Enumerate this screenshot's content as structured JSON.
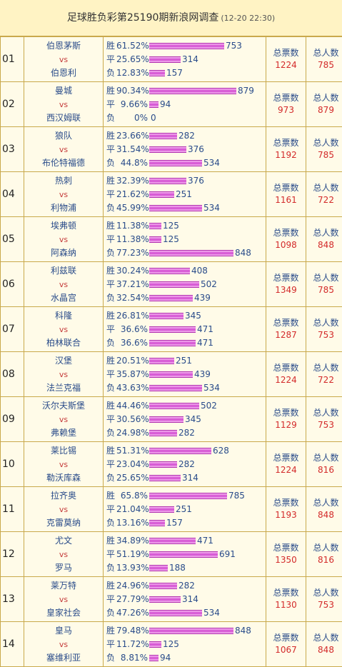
{
  "title": "足球胜负彩第25190期新浪网调查",
  "timestamp": "(12-20 22:30)",
  "labels": {
    "win": "胜",
    "draw": "平",
    "lose": "负",
    "vs": "vs",
    "total_votes": "总票数",
    "total_people": "总人数"
  },
  "colors": {
    "bar": "#D24BD0",
    "team_text": "#2A4C8A",
    "vs_text": "#C43A3A",
    "count_text": "#D32A2A",
    "header_bg": "#FFF3C4"
  },
  "matches": [
    {
      "idx": "01",
      "home": "伯恩茅斯",
      "away": "伯恩利",
      "win_pct": "61.52%",
      "win_cnt": "753",
      "draw_pct": "25.65%",
      "draw_cnt": "314",
      "lose_pct": "12.83%",
      "lose_cnt": "157",
      "total_votes": "1224",
      "total_people": "785"
    },
    {
      "idx": "02",
      "home": "曼城",
      "away": "西汉姆联",
      "win_pct": "90.34%",
      "win_cnt": "879",
      "draw_pct": "9.66%",
      "draw_cnt": "94",
      "lose_pct": "0%",
      "lose_cnt": "0",
      "total_votes": "973",
      "total_people": "879"
    },
    {
      "idx": "03",
      "home": "狼队",
      "away": "布伦特福德",
      "win_pct": "23.66%",
      "win_cnt": "282",
      "draw_pct": "31.54%",
      "draw_cnt": "376",
      "lose_pct": "44.8%",
      "lose_cnt": "534",
      "total_votes": "1192",
      "total_people": "785"
    },
    {
      "idx": "04",
      "home": "热刺",
      "away": "利物浦",
      "win_pct": "32.39%",
      "win_cnt": "376",
      "draw_pct": "21.62%",
      "draw_cnt": "251",
      "lose_pct": "45.99%",
      "lose_cnt": "534",
      "total_votes": "1161",
      "total_people": "722"
    },
    {
      "idx": "05",
      "home": "埃弗顿",
      "away": "阿森纳",
      "win_pct": "11.38%",
      "win_cnt": "125",
      "draw_pct": "11.38%",
      "draw_cnt": "125",
      "lose_pct": "77.23%",
      "lose_cnt": "848",
      "total_votes": "1098",
      "total_people": "848"
    },
    {
      "idx": "06",
      "home": "利兹联",
      "away": "水晶宫",
      "win_pct": "30.24%",
      "win_cnt": "408",
      "draw_pct": "37.21%",
      "draw_cnt": "502",
      "lose_pct": "32.54%",
      "lose_cnt": "439",
      "total_votes": "1349",
      "total_people": "785"
    },
    {
      "idx": "07",
      "home": "科隆",
      "away": "柏林联合",
      "win_pct": "26.81%",
      "win_cnt": "345",
      "draw_pct": "36.6%",
      "draw_cnt": "471",
      "lose_pct": "36.6%",
      "lose_cnt": "471",
      "total_votes": "1287",
      "total_people": "753"
    },
    {
      "idx": "08",
      "home": "汉堡",
      "away": "法兰克福",
      "win_pct": "20.51%",
      "win_cnt": "251",
      "draw_pct": "35.87%",
      "draw_cnt": "439",
      "lose_pct": "43.63%",
      "lose_cnt": "534",
      "total_votes": "1224",
      "total_people": "722"
    },
    {
      "idx": "09",
      "home": "沃尔夫斯堡",
      "away": "弗赖堡",
      "win_pct": "44.46%",
      "win_cnt": "502",
      "draw_pct": "30.56%",
      "draw_cnt": "345",
      "lose_pct": "24.98%",
      "lose_cnt": "282",
      "total_votes": "1129",
      "total_people": "753"
    },
    {
      "idx": "10",
      "home": "莱比锡",
      "away": "勒沃库森",
      "win_pct": "51.31%",
      "win_cnt": "628",
      "draw_pct": "23.04%",
      "draw_cnt": "282",
      "lose_pct": "25.65%",
      "lose_cnt": "314",
      "total_votes": "1224",
      "total_people": "816"
    },
    {
      "idx": "11",
      "home": "拉齐奥",
      "away": "克雷莫纳",
      "win_pct": "65.8%",
      "win_cnt": "785",
      "draw_pct": "21.04%",
      "draw_cnt": "251",
      "lose_pct": "13.16%",
      "lose_cnt": "157",
      "total_votes": "1193",
      "total_people": "848"
    },
    {
      "idx": "12",
      "home": "尤文",
      "away": "罗马",
      "win_pct": "34.89%",
      "win_cnt": "471",
      "draw_pct": "51.19%",
      "draw_cnt": "691",
      "lose_pct": "13.93%",
      "lose_cnt": "188",
      "total_votes": "1350",
      "total_people": "816"
    },
    {
      "idx": "13",
      "home": "莱万特",
      "away": "皇家社会",
      "win_pct": "24.96%",
      "win_cnt": "282",
      "draw_pct": "27.79%",
      "draw_cnt": "314",
      "lose_pct": "47.26%",
      "lose_cnt": "534",
      "total_votes": "1130",
      "total_people": "753"
    },
    {
      "idx": "14",
      "home": "皇马",
      "away": "塞维利亚",
      "win_pct": "79.48%",
      "win_cnt": "848",
      "draw_pct": "11.72%",
      "draw_cnt": "125",
      "lose_pct": "8.81%",
      "lose_cnt": "94",
      "total_votes": "1067",
      "total_people": "848"
    }
  ]
}
